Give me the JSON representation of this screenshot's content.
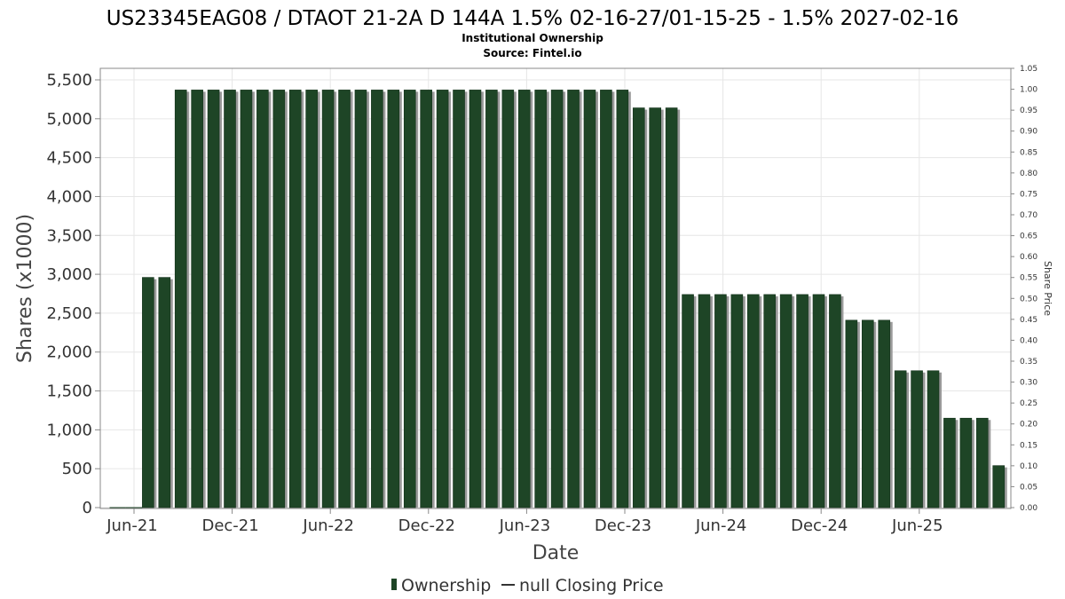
{
  "chart_data": {
    "type": "bar",
    "title": "US23345EAG08 / DTAOT 21-2A D 144A 1.5% 02-16-27/01-15-25 - 1.5% 2027-02-16",
    "subtitle_lines": [
      "Institutional Ownership",
      "Source: Fintel.io"
    ],
    "xlabel": "Date",
    "ylabel": "Shares (x1000)",
    "y2label": "Share Price",
    "ylim": [
      0,
      5500
    ],
    "y_ticks": [
      "0",
      "500",
      "1,000",
      "1,500",
      "2,000",
      "2,500",
      "3,000",
      "3,500",
      "4,000",
      "4,500",
      "5,000",
      "5,500"
    ],
    "y2lim": [
      0,
      1.05
    ],
    "y2_ticks": [
      "0.00",
      "0.05",
      "0.10",
      "0.15",
      "0.20",
      "0.25",
      "0.30",
      "0.35",
      "0.40",
      "0.45",
      "0.50",
      "0.55",
      "0.60",
      "0.65",
      "0.70",
      "0.75",
      "0.80",
      "0.85",
      "0.90",
      "0.95",
      "1.00",
      "1.05"
    ],
    "x_ticks": [
      "Jun-21",
      "Dec-21",
      "Jun-22",
      "Dec-22",
      "Jun-23",
      "Dec-23",
      "Jun-24",
      "Dec-24",
      "Jun-25"
    ],
    "grid": true,
    "legend_position": "bottom",
    "series": [
      {
        "name": "Ownership",
        "color": "#1e4526",
        "values": [
          0,
          0,
          2960,
          2960,
          5370,
          5370,
          5370,
          5370,
          5370,
          5370,
          5370,
          5370,
          5370,
          5370,
          5370,
          5370,
          5370,
          5370,
          5370,
          5370,
          5370,
          5370,
          5370,
          5370,
          5370,
          5370,
          5370,
          5370,
          5370,
          5370,
          5370,
          5370,
          5140,
          5140,
          5140,
          2740,
          2740,
          2740,
          2740,
          2740,
          2740,
          2740,
          2740,
          2740,
          2740,
          2410,
          2410,
          2410,
          1760,
          1760,
          1760,
          1150,
          1150,
          1150,
          540
        ]
      },
      {
        "name": "null Closing Price",
        "color": "#333333",
        "values": []
      }
    ]
  },
  "legend": {
    "items": [
      {
        "label": "Ownership",
        "icon": "bar-swatch-icon",
        "color": "#1e4526"
      },
      {
        "label": "null Closing Price",
        "icon": "line-swatch-icon",
        "color": "#333333"
      }
    ]
  }
}
